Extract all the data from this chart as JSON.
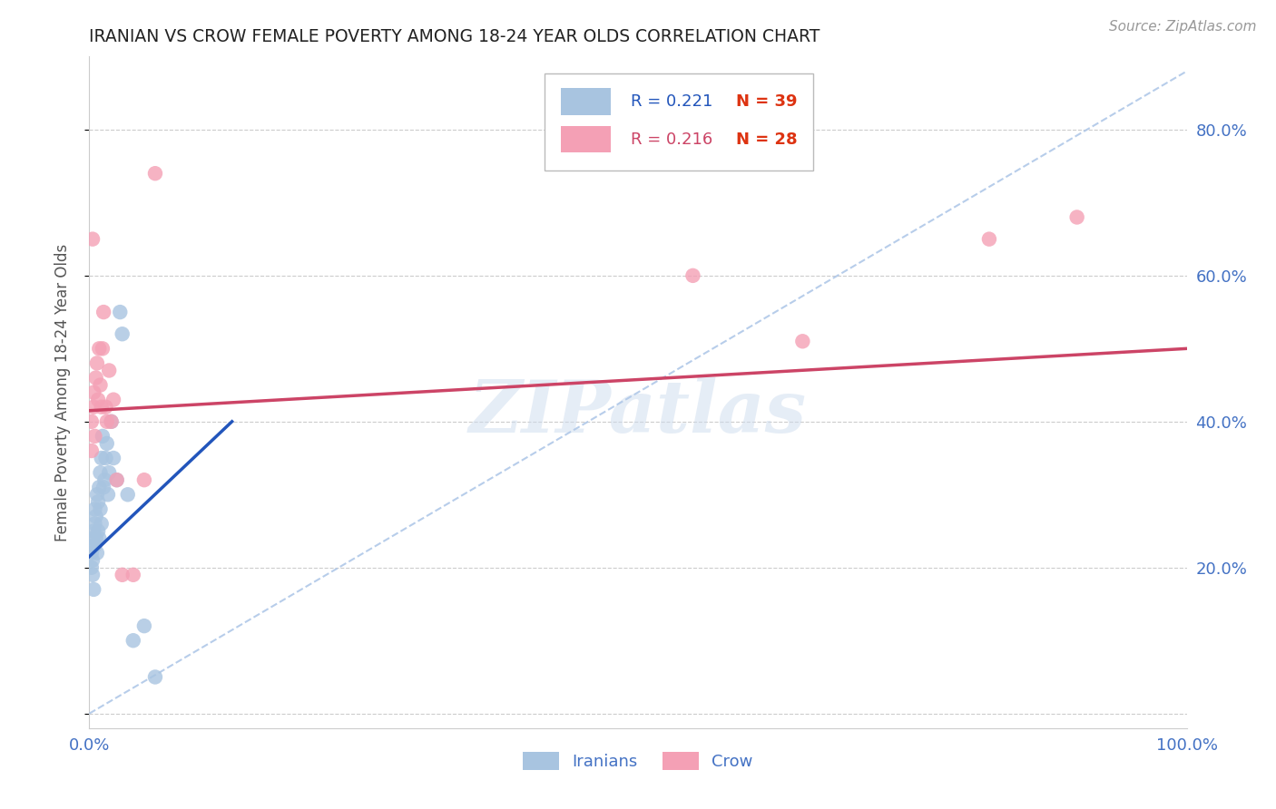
{
  "title": "IRANIAN VS CROW FEMALE POVERTY AMONG 18-24 YEAR OLDS CORRELATION CHART",
  "source": "Source: ZipAtlas.com",
  "ylabel": "Female Poverty Among 18-24 Year Olds",
  "xlim": [
    0.0,
    1.0
  ],
  "ylim": [
    -0.02,
    0.9
  ],
  "iranian_color": "#a8c4e0",
  "crow_color": "#f4a0b5",
  "trendline_iranian_color": "#2255bb",
  "trendline_crow_color": "#cc4466",
  "diagonal_color": "#b0c8e8",
  "watermark": "ZIPatlas",
  "legend_r_iranian": "R = 0.221",
  "legend_n_iranian": "N = 39",
  "legend_r_crow": "R = 0.216",
  "legend_n_crow": "N = 28",
  "iranian_x": [
    0.002,
    0.002,
    0.003,
    0.003,
    0.003,
    0.004,
    0.004,
    0.004,
    0.005,
    0.005,
    0.005,
    0.006,
    0.006,
    0.007,
    0.007,
    0.008,
    0.008,
    0.009,
    0.009,
    0.01,
    0.01,
    0.011,
    0.011,
    0.012,
    0.013,
    0.014,
    0.015,
    0.016,
    0.017,
    0.018,
    0.02,
    0.022,
    0.025,
    0.028,
    0.03,
    0.035,
    0.04,
    0.05,
    0.06
  ],
  "iranian_y": [
    0.22,
    0.2,
    0.24,
    0.21,
    0.19,
    0.25,
    0.23,
    0.17,
    0.26,
    0.28,
    0.23,
    0.27,
    0.24,
    0.3,
    0.22,
    0.29,
    0.25,
    0.31,
    0.24,
    0.33,
    0.28,
    0.35,
    0.26,
    0.38,
    0.31,
    0.32,
    0.35,
    0.37,
    0.3,
    0.33,
    0.4,
    0.35,
    0.32,
    0.55,
    0.52,
    0.3,
    0.1,
    0.12,
    0.05
  ],
  "crow_x": [
    0.002,
    0.002,
    0.003,
    0.004,
    0.004,
    0.005,
    0.006,
    0.007,
    0.008,
    0.009,
    0.01,
    0.011,
    0.012,
    0.013,
    0.015,
    0.016,
    0.018,
    0.02,
    0.022,
    0.025,
    0.03,
    0.04,
    0.05,
    0.06,
    0.55,
    0.65,
    0.82,
    0.9
  ],
  "crow_y": [
    0.4,
    0.36,
    0.65,
    0.42,
    0.44,
    0.38,
    0.46,
    0.48,
    0.43,
    0.5,
    0.45,
    0.42,
    0.5,
    0.55,
    0.42,
    0.4,
    0.47,
    0.4,
    0.43,
    0.32,
    0.19,
    0.19,
    0.32,
    0.74,
    0.6,
    0.51,
    0.65,
    0.68
  ],
  "background_color": "#ffffff",
  "grid_color": "#cccccc",
  "title_color": "#222222",
  "tick_color": "#4472c4"
}
